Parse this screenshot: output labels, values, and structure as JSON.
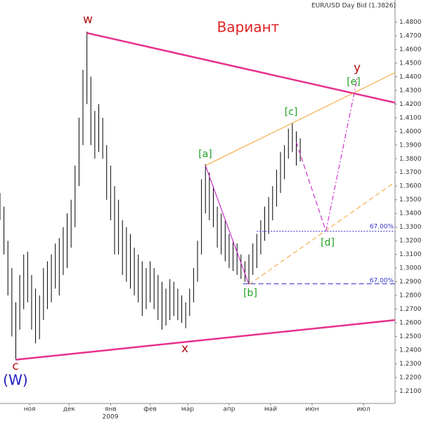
{
  "chart_data": {
    "type": "ohlc",
    "title": "EUR/USD Day Bid (1.3826)",
    "subtitle": "Вариант",
    "x_sublabel": "2009",
    "xlim": [
      0,
      200
    ],
    "xticks": [
      {
        "value": 15,
        "label": "ноя"
      },
      {
        "value": 35,
        "label": "дек"
      },
      {
        "value": 56,
        "label": "янв"
      },
      {
        "value": 76,
        "label": "фев"
      },
      {
        "value": 95,
        "label": "мар"
      },
      {
        "value": 116,
        "label": "апр"
      },
      {
        "value": 137,
        "label": "май"
      },
      {
        "value": 158,
        "label": "июн"
      },
      {
        "value": 184,
        "label": "июл"
      }
    ],
    "ylim": [
      1.201,
      1.491
    ],
    "yticks": [
      {
        "value": 1.21,
        "label": "1.2100"
      },
      {
        "value": 1.22,
        "label": "1.2200"
      },
      {
        "value": 1.23,
        "label": "1.2300"
      },
      {
        "value": 1.24,
        "label": "1.2400"
      },
      {
        "value": 1.25,
        "label": "1.2500"
      },
      {
        "value": 1.26,
        "label": "1.2600"
      },
      {
        "value": 1.27,
        "label": "1.2700"
      },
      {
        "value": 1.28,
        "label": "1.2800"
      },
      {
        "value": 1.29,
        "label": "1.2900"
      },
      {
        "value": 1.3,
        "label": "1.3000"
      },
      {
        "value": 1.31,
        "label": "1.3100"
      },
      {
        "value": 1.32,
        "label": "1.3200"
      },
      {
        "value": 1.33,
        "label": "1.3300"
      },
      {
        "value": 1.34,
        "label": "1.3400"
      },
      {
        "value": 1.35,
        "label": "1.3500"
      },
      {
        "value": 1.36,
        "label": "1.3600"
      },
      {
        "value": 1.37,
        "label": "1.3700"
      },
      {
        "value": 1.38,
        "label": "1.3800"
      },
      {
        "value": 1.39,
        "label": "1.3900"
      },
      {
        "value": 1.4,
        "label": "1.4000"
      },
      {
        "value": 1.41,
        "label": "1.4100"
      },
      {
        "value": 1.42,
        "label": "1.4200"
      },
      {
        "value": 1.43,
        "label": "1.4300"
      },
      {
        "value": 1.44,
        "label": "1.4400"
      },
      {
        "value": 1.45,
        "label": "1.4500"
      },
      {
        "value": 1.46,
        "label": "1.4600"
      },
      {
        "value": 1.47,
        "label": "1.4700"
      },
      {
        "value": 1.48,
        "label": "1.4800"
      }
    ],
    "grid": false,
    "bar_color": "#000000",
    "x": [
      0,
      2,
      4,
      6,
      8,
      10,
      12,
      14,
      16,
      18,
      20,
      22,
      24,
      26,
      28,
      30,
      32,
      34,
      36,
      38,
      40,
      42,
      44,
      46,
      48,
      50,
      52,
      54,
      56,
      58,
      60,
      62,
      64,
      66,
      68,
      70,
      72,
      74,
      76,
      78,
      80,
      82,
      84,
      86,
      88,
      90,
      92,
      94,
      96,
      98,
      100,
      102,
      104,
      106,
      108,
      110,
      112,
      114,
      116,
      118,
      120,
      122,
      124,
      126,
      128,
      130,
      132,
      134,
      136,
      138,
      140,
      142,
      144,
      146,
      148,
      150,
      152
    ],
    "high": [
      1.355,
      1.345,
      1.32,
      1.3,
      1.275,
      1.295,
      1.31,
      1.312,
      1.295,
      1.285,
      1.28,
      1.3,
      1.305,
      1.31,
      1.318,
      1.322,
      1.33,
      1.34,
      1.35,
      1.375,
      1.41,
      1.445,
      1.473,
      1.44,
      1.415,
      1.42,
      1.41,
      1.39,
      1.375,
      1.36,
      1.35,
      1.335,
      1.33,
      1.325,
      1.315,
      1.31,
      1.305,
      1.3,
      1.305,
      1.3,
      1.295,
      1.29,
      1.285,
      1.292,
      1.29,
      1.285,
      1.28,
      1.275,
      1.285,
      1.3,
      1.32,
      1.365,
      1.376,
      1.37,
      1.36,
      1.345,
      1.34,
      1.335,
      1.325,
      1.32,
      1.318,
      1.31,
      1.305,
      1.31,
      1.318,
      1.325,
      1.335,
      1.345,
      1.352,
      1.36,
      1.372,
      1.385,
      1.39,
      1.402,
      1.406,
      1.4,
      1.395
    ],
    "low": [
      1.335,
      1.31,
      1.28,
      1.25,
      1.233,
      1.255,
      1.27,
      1.275,
      1.255,
      1.245,
      1.248,
      1.262,
      1.27,
      1.275,
      1.285,
      1.28,
      1.295,
      1.3,
      1.315,
      1.33,
      1.36,
      1.39,
      1.42,
      1.39,
      1.38,
      1.385,
      1.38,
      1.35,
      1.335,
      1.31,
      1.31,
      1.295,
      1.29,
      1.285,
      1.28,
      1.275,
      1.265,
      1.27,
      1.275,
      1.27,
      1.262,
      1.255,
      1.258,
      1.262,
      1.265,
      1.262,
      1.26,
      1.256,
      1.265,
      1.275,
      1.29,
      1.31,
      1.34,
      1.335,
      1.33,
      1.315,
      1.31,
      1.305,
      1.3,
      1.298,
      1.295,
      1.292,
      1.29,
      1.288,
      1.295,
      1.3,
      1.31,
      1.32,
      1.325,
      1.335,
      1.345,
      1.355,
      1.365,
      1.38,
      1.385,
      1.375,
      1.378
    ],
    "trendlines": [
      {
        "x": [
          44,
          200
        ],
        "y": [
          1.472,
          1.421
        ],
        "color": "#e8308c",
        "width": 2.5,
        "dash": "solid"
      },
      {
        "x": [
          8,
          200
        ],
        "y": [
          1.233,
          1.262
        ],
        "color": "#e8308c",
        "width": 2.5,
        "dash": "solid"
      },
      {
        "x": [
          104,
          200
        ],
        "y": [
          1.375,
          1.443
        ],
        "color": "#f5a030",
        "width": 1,
        "dash": "solid"
      },
      {
        "x": [
          126,
          200
        ],
        "y": [
          1.288,
          1.363
        ],
        "color": "#f5a030",
        "width": 1,
        "dash": "dashed"
      },
      {
        "x": [
          104,
          126
        ],
        "y": [
          1.375,
          1.288
        ],
        "color": "#cc33cc",
        "width": 1.2,
        "dash": "solid"
      },
      {
        "x": [
          150,
          165
        ],
        "y": [
          1.392,
          1.327
        ],
        "color": "#cc33cc",
        "width": 1.2,
        "dash": "dashed"
      },
      {
        "x": [
          165,
          181
        ],
        "y": [
          1.327,
          1.44
        ],
        "color": "#cc33cc",
        "width": 1.2,
        "dash": "dashdot"
      },
      {
        "x": [
          130,
          200
        ],
        "y": [
          1.327,
          1.327
        ],
        "color": "#3333cc",
        "width": 1,
        "dash": "dotted"
      },
      {
        "x": [
          123,
          200
        ],
        "y": [
          1.2885,
          1.2885
        ],
        "color": "#3333cc",
        "width": 1,
        "dash": "dashed"
      }
    ],
    "level_labels": [
      "67.00%",
      "67.00%"
    ],
    "annotations": [
      {
        "text": "w",
        "color": "#b01010"
      },
      {
        "text": "x",
        "color": "#b01010"
      },
      {
        "text": "c",
        "color": "#b01010"
      },
      {
        "text": "(W)",
        "color": "#2020c0"
      },
      {
        "text": "y",
        "color": "#b01010"
      },
      {
        "text": "[a]",
        "color": "#20a020"
      },
      {
        "text": "[b]",
        "color": "#20a020"
      },
      {
        "text": "[c]",
        "color": "#20a020"
      },
      {
        "text": "[d]",
        "color": "#20a020"
      },
      {
        "text": "[e]",
        "color": "#20a020"
      }
    ]
  }
}
